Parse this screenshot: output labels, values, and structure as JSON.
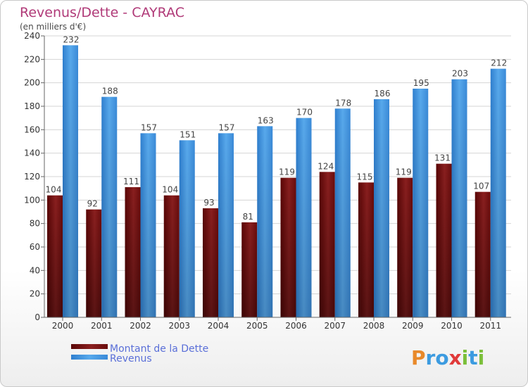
{
  "chart_data": {
    "type": "bar",
    "title": "Revenus/Dette - CAYRAC",
    "subtitle": "(en milliers d'€)",
    "categories": [
      "2000",
      "2001",
      "2002",
      "2003",
      "2004",
      "2005",
      "2006",
      "2007",
      "2008",
      "2009",
      "2010",
      "2011"
    ],
    "series": [
      {
        "name": "Montant de la Dette",
        "color": "#7a1010",
        "values": [
          104,
          92,
          111,
          104,
          93,
          81,
          119,
          124,
          115,
          119,
          131,
          107
        ]
      },
      {
        "name": "Revenus",
        "color": "#3b8fdc",
        "values": [
          232,
          188,
          157,
          151,
          157,
          163,
          170,
          178,
          186,
          195,
          203,
          212
        ]
      }
    ],
    "ylim": [
      0,
      240
    ],
    "yticks": [
      0,
      20,
      40,
      60,
      80,
      100,
      120,
      140,
      160,
      180,
      200,
      220,
      240
    ],
    "grid": true,
    "legend": "bottom-left",
    "xlabel": "",
    "ylabel": ""
  },
  "brand": {
    "letters": [
      "P",
      "r",
      "o",
      "x",
      "i",
      "t",
      "i"
    ],
    "colors": [
      "#e8892a",
      "#3c9be0",
      "#3c9be0",
      "#e03a3a",
      "#7bbf3a",
      "#3c9be0",
      "#7bbf3a"
    ]
  }
}
